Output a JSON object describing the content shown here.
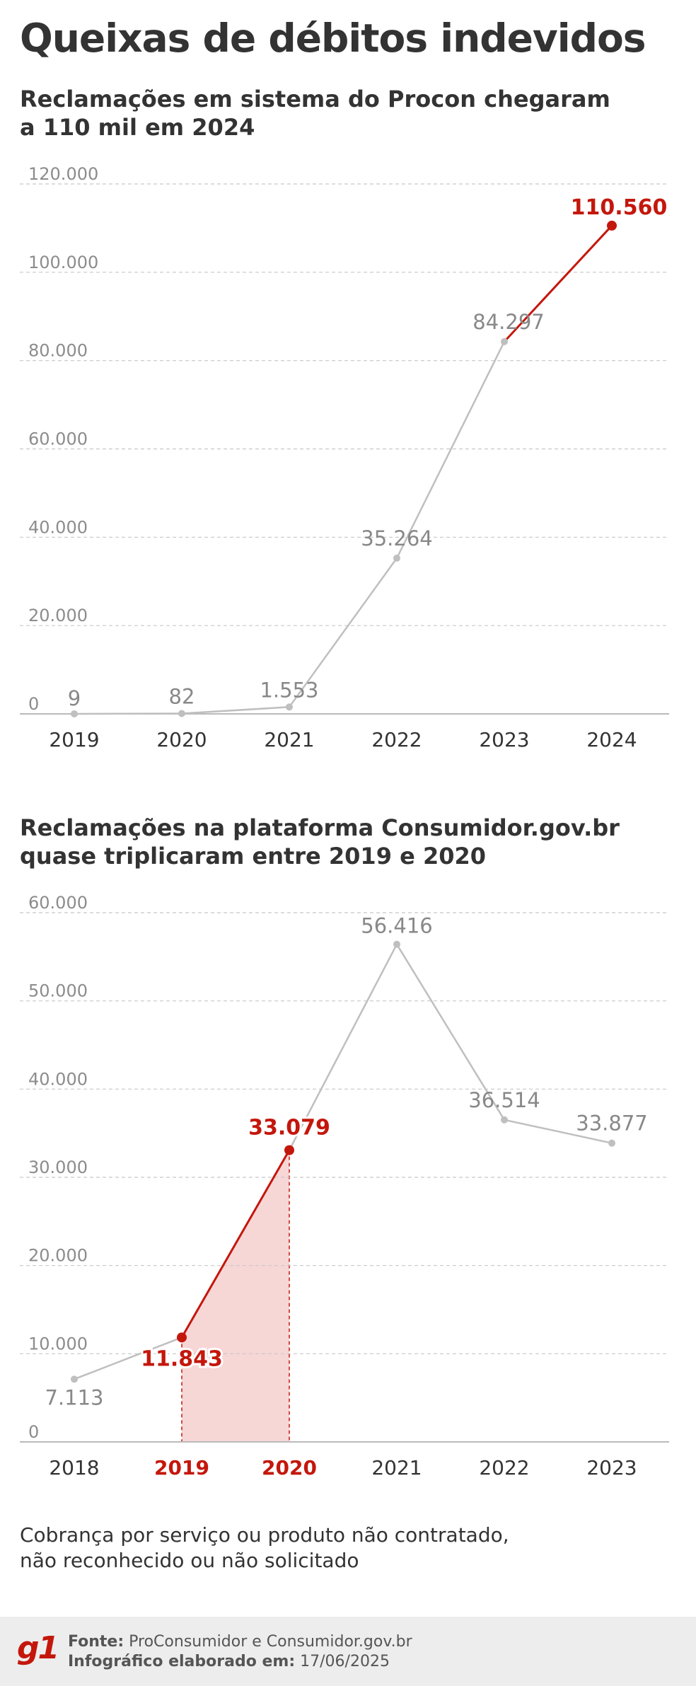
{
  "title": "Queixas de débitos indevidos",
  "colors": {
    "highlight": "#c4170c",
    "muted": "#bfbfbf",
    "fill": "#f7d6d6",
    "text": "#333333",
    "axis_text": "#8c8c8c"
  },
  "chart_data": [
    {
      "type": "line",
      "title": "Reclamações em sistema do Procon chegaram a 110 mil em 2024",
      "title_lines": [
        "Reclamações em sistema do Procon chegaram",
        "a 110 mil em 2024"
      ],
      "categories": [
        "2019",
        "2020",
        "2021",
        "2022",
        "2023",
        "2024"
      ],
      "values": [
        9,
        82,
        1553,
        35264,
        84297,
        110560
      ],
      "value_labels": [
        "9",
        "82",
        "1.553",
        "35.264",
        "84.297",
        "110.560"
      ],
      "highlight_indices": [
        5
      ],
      "highlight_segment": [
        4,
        5
      ],
      "ylim": [
        0,
        120000
      ],
      "yticks": [
        0,
        20000,
        40000,
        60000,
        80000,
        100000,
        120000
      ],
      "ytick_labels": [
        "0",
        "20.000",
        "40.000",
        "60.000",
        "80.000",
        "100.000",
        "120.000"
      ],
      "grid": true,
      "xlabel": "",
      "ylabel": ""
    },
    {
      "type": "line",
      "title": "Reclamações na plataforma Consumidor.gov.br quase triplicaram entre 2019 e 2020",
      "title_lines": [
        "Reclamações na plataforma  Consumidor.gov.br",
        "quase triplicaram entre 2019 e 2020"
      ],
      "categories": [
        "2018",
        "2019",
        "2020",
        "2021",
        "2022",
        "2023"
      ],
      "values": [
        7113,
        11843,
        33079,
        56416,
        36514,
        33877
      ],
      "value_labels": [
        "7.113",
        "11.843",
        "33.079",
        "56.416",
        "36.514",
        "33.877"
      ],
      "highlight_indices": [
        1,
        2
      ],
      "highlight_segment": [
        1,
        2
      ],
      "shaded_area": [
        1,
        2
      ],
      "ylim": [
        0,
        60000
      ],
      "yticks": [
        0,
        10000,
        20000,
        30000,
        40000,
        50000,
        60000
      ],
      "ytick_labels": [
        "0",
        "10.000",
        "20.000",
        "30.000",
        "40.000",
        "50.000",
        "60.000"
      ],
      "grid": true,
      "xlabel": "",
      "ylabel": ""
    }
  ],
  "note": [
    "Cobrança por serviço ou produto não contratado,",
    "não reconhecido ou não solicitado"
  ],
  "footer": {
    "logo": "g1",
    "source_label": "Fonte:",
    "source_value": "ProConsumidor e Consumidor.gov.br",
    "date_label": "Infográfico elaborado em:",
    "date_value": "17/06/2025"
  }
}
